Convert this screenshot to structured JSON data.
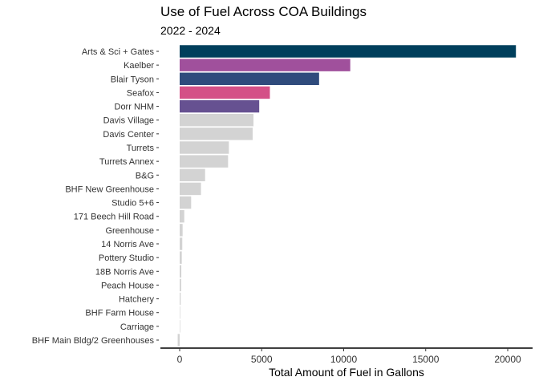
{
  "chart_data": {
    "type": "bar",
    "orientation": "horizontal",
    "title": "Use of Fuel Across COA Buildings",
    "subtitle": "2022 - 2024",
    "xlabel": "Total Amount of Fuel in Gallons",
    "ylabel": "",
    "xlim": [
      -1000,
      21200
    ],
    "xticks": [
      0,
      5000,
      10000,
      15000,
      20000
    ],
    "xtick_labels": [
      "0",
      "5000",
      "10000",
      "15000",
      "20000"
    ],
    "grid": false,
    "categories": [
      "Arts & Sci + Gates",
      "Kaelber",
      "Blair Tyson",
      "Seafox",
      "Dorr NHM",
      "Davis Village",
      "Davis Center",
      "Turrets",
      "Turrets Annex",
      "B&G",
      "BHF New Greenhouse",
      "Studio 5+6",
      "171 Beech Hill Road",
      "Greenhouse",
      "14 Norris Ave",
      "Pottery Studio",
      "18B Norris Ave",
      "Peach House",
      "Hatchery",
      "BHF Farm House",
      "Carriage",
      "BHF Main Bldg/2 Greenhouses"
    ],
    "values": [
      20500,
      10400,
      8500,
      5500,
      4850,
      4500,
      4450,
      3000,
      2950,
      1550,
      1300,
      700,
      280,
      180,
      160,
      130,
      100,
      90,
      60,
      20,
      10,
      -120
    ],
    "colors": [
      "#003f5c",
      "#a0509c",
      "#2f4b7c",
      "#d45087",
      "#665191",
      "#d3d3d3",
      "#d3d3d3",
      "#d3d3d3",
      "#d3d3d3",
      "#d3d3d3",
      "#d3d3d3",
      "#d3d3d3",
      "#d3d3d3",
      "#d3d3d3",
      "#d3d3d3",
      "#d3d3d3",
      "#d3d3d3",
      "#d3d3d3",
      "#d3d3d3",
      "#d3d3d3",
      "#d3d3d3",
      "#d3d3d3"
    ]
  }
}
